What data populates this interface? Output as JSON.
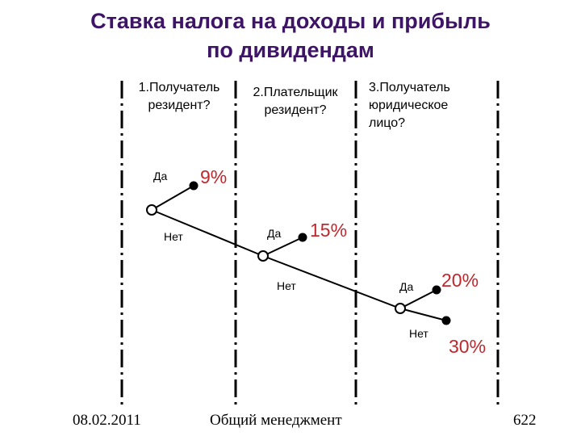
{
  "title": {
    "line1": "Ставка налога на доходы и прибыль",
    "line2": "по дивидендам"
  },
  "questions": {
    "q1": [
      "1.Получатель",
      "резидент?"
    ],
    "q2": [
      "2.Плательщик",
      "резидент?"
    ],
    "q3": [
      "3.Получатель",
      "юридическое",
      "лицо?"
    ]
  },
  "branches": {
    "yes": "Да",
    "no": "Нет"
  },
  "rates": {
    "r1": "9%",
    "r2": "15%",
    "r3": "20%",
    "r4": "30%"
  },
  "colors": {
    "title": "#3d1466",
    "rate": "#c0272d",
    "line": "#000000"
  },
  "footer": {
    "date": "08.02.2011",
    "subject": "Общий менеджмент",
    "page": "622"
  }
}
